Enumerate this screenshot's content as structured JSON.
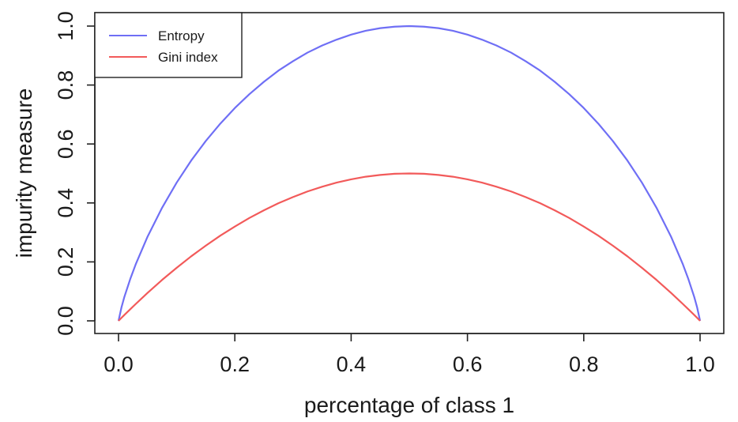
{
  "chart_data": {
    "type": "line",
    "title": "",
    "xlabel": "percentage of class 1",
    "ylabel": "impurity measure",
    "xlim": [
      0,
      1
    ],
    "ylim": [
      0,
      1
    ],
    "xticks": [
      "0.0",
      "0.2",
      "0.4",
      "0.6",
      "0.8",
      "1.0"
    ],
    "yticks": [
      "0.0",
      "0.2",
      "0.4",
      "0.6",
      "0.8",
      "1.0"
    ],
    "grid": false,
    "legend_position": "top-left",
    "x": [
      0,
      0.005,
      0.01,
      0.02,
      0.03,
      0.05,
      0.075,
      0.1,
      0.125,
      0.15,
      0.175,
      0.2,
      0.225,
      0.25,
      0.275,
      0.3,
      0.325,
      0.35,
      0.375,
      0.4,
      0.425,
      0.45,
      0.475,
      0.5,
      0.525,
      0.55,
      0.575,
      0.6,
      0.625,
      0.65,
      0.675,
      0.7,
      0.725,
      0.75,
      0.775,
      0.8,
      0.825,
      0.85,
      0.875,
      0.9,
      0.925,
      0.95,
      0.97,
      0.98,
      0.99,
      0.995,
      1
    ],
    "series": [
      {
        "name": "Entropy",
        "color": "#6f6ff5",
        "values": [
          0,
          0.045,
          0.081,
          0.141,
          0.194,
          0.286,
          0.384,
          0.469,
          0.544,
          0.61,
          0.669,
          0.722,
          0.769,
          0.811,
          0.849,
          0.881,
          0.91,
          0.934,
          0.954,
          0.971,
          0.984,
          0.993,
          0.998,
          1.0,
          0.998,
          0.993,
          0.984,
          0.971,
          0.954,
          0.934,
          0.91,
          0.881,
          0.849,
          0.811,
          0.769,
          0.722,
          0.669,
          0.61,
          0.544,
          0.469,
          0.384,
          0.286,
          0.194,
          0.141,
          0.081,
          0.045,
          0
        ]
      },
      {
        "name": "Gini index",
        "color": "#f25a5a",
        "values": [
          0,
          0.01,
          0.02,
          0.039,
          0.058,
          0.095,
          0.139,
          0.18,
          0.219,
          0.255,
          0.289,
          0.32,
          0.349,
          0.375,
          0.399,
          0.42,
          0.439,
          0.455,
          0.469,
          0.48,
          0.489,
          0.495,
          0.499,
          0.5,
          0.499,
          0.495,
          0.489,
          0.48,
          0.469,
          0.455,
          0.439,
          0.42,
          0.399,
          0.375,
          0.349,
          0.32,
          0.289,
          0.255,
          0.219,
          0.18,
          0.139,
          0.095,
          0.058,
          0.039,
          0.02,
          0.01,
          0
        ]
      }
    ]
  }
}
